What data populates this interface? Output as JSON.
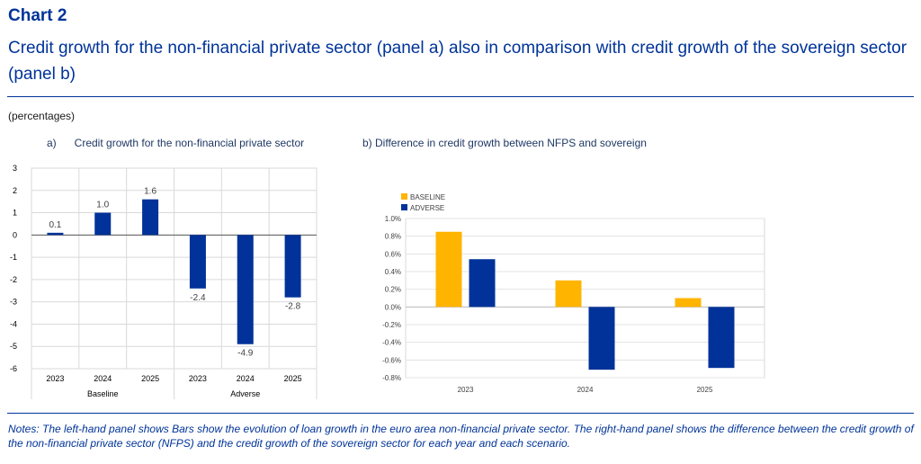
{
  "header": {
    "chart_label": "Chart 2",
    "title": "Credit growth for the non-financial private sector (panel a) also in comparison with credit growth of the sovereign sector (panel b)",
    "units": "(percentages)"
  },
  "panel_a": {
    "title": "a)      Credit growth for the non-financial private sector"
  },
  "panel_b": {
    "title": "b) Difference in credit growth between NFPS and sovereign"
  },
  "notes": "Notes: The left-hand panel shows Bars show the evolution of loan growth in the euro area non-financial private sector. The right-hand panel shows the difference between the credit growth of the non-financial private sector (NFPS) and the credit growth of the sovereign sector for each year and each scenario.",
  "colors": {
    "title": "#003399",
    "baseline": "#FFB400",
    "adverse": "#003299",
    "panel_a_bar": "#003299"
  },
  "chart_data": [
    {
      "type": "bar",
      "title": "Credit growth for the non-financial private sector",
      "categories": [
        "2023",
        "2024",
        "2025",
        "2023",
        "2024",
        "2025"
      ],
      "groups": [
        {
          "label": "Baseline",
          "categories": [
            "2023",
            "2024",
            "2025"
          ]
        },
        {
          "label": "Adverse",
          "categories": [
            "2023",
            "2024",
            "2025"
          ]
        }
      ],
      "values": [
        0.1,
        1.0,
        1.6,
        -2.4,
        -4.9,
        -2.8
      ],
      "data_labels": [
        "0.1",
        "1.0",
        "1.6",
        "-2.4",
        "-4.9",
        "-2.8"
      ],
      "ylim": [
        -6,
        3
      ],
      "yticks": [
        3,
        2,
        1,
        0,
        -1,
        -2,
        -3,
        -4,
        -5,
        -6
      ],
      "grid": true
    },
    {
      "type": "bar",
      "title": "Difference in credit growth between NFPS and sovereign",
      "categories": [
        "2023",
        "2024",
        "2025"
      ],
      "series": [
        {
          "name": "BASELINE",
          "values": [
            0.85,
            0.3,
            0.1
          ]
        },
        {
          "name": "ADVERSE",
          "values": [
            0.54,
            -0.71,
            -0.69
          ]
        }
      ],
      "ylim": [
        -0.8,
        1.0
      ],
      "yticks": [
        "1.0%",
        "0.8%",
        "0.6%",
        "0.4%",
        "0.2%",
        "0.0%",
        "-0.2%",
        "-0.4%",
        "-0.6%",
        "-0.8%"
      ],
      "legend_position": "top-left",
      "grid": true
    }
  ]
}
